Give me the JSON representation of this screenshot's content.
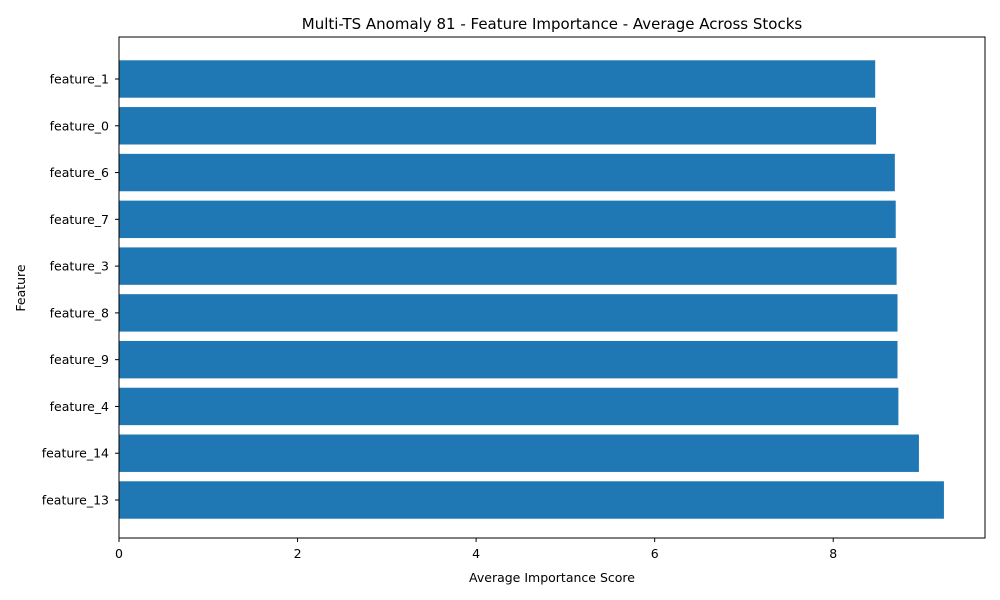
{
  "chart_data": {
    "type": "bar",
    "orientation": "horizontal",
    "title": "Multi-TS Anomaly 81 - Feature Importance - Average Across Stocks",
    "xlabel": "Average Importance Score",
    "ylabel": "Feature",
    "categories": [
      "feature_1",
      "feature_0",
      "feature_6",
      "feature_7",
      "feature_3",
      "feature_8",
      "feature_9",
      "feature_4",
      "feature_14",
      "feature_13"
    ],
    "values": [
      8.47,
      8.48,
      8.69,
      8.7,
      8.71,
      8.72,
      8.72,
      8.73,
      8.96,
      9.24
    ],
    "xlim": [
      0,
      9.7
    ],
    "xticks": [
      0,
      2,
      4,
      6,
      8
    ],
    "xtick_labels": [
      "0",
      "2",
      "4",
      "6",
      "8"
    ],
    "bar_color": "#1f77b4",
    "grid": false,
    "legend": "none"
  }
}
